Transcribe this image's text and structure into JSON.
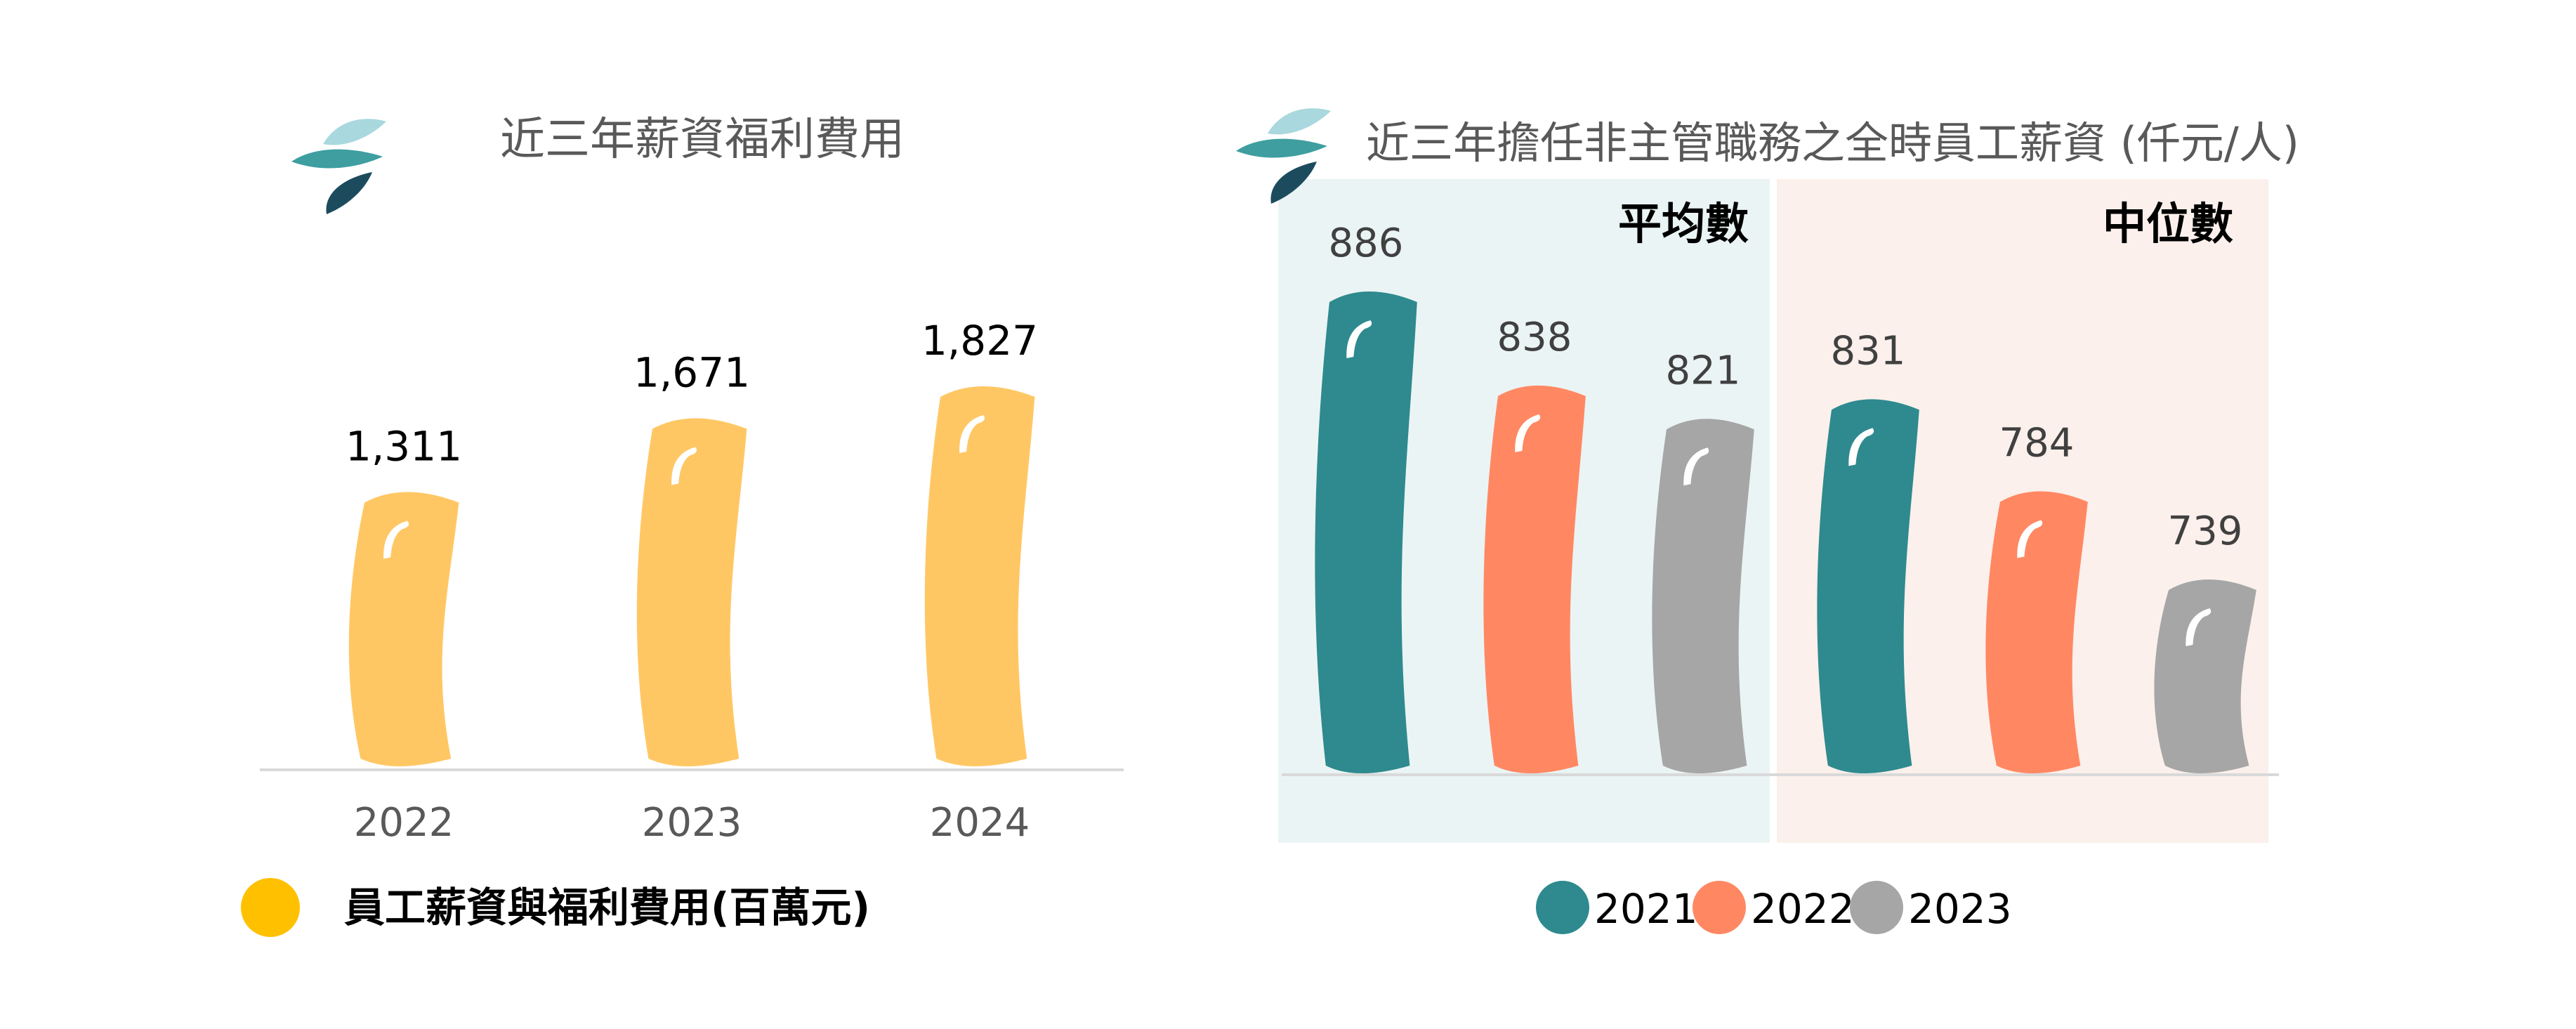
{
  "colors": {
    "yellow": "#FFC764",
    "legend_yellow": "#FFC000",
    "teal": "#2E8A8E",
    "orange": "#FF8863",
    "gray": "#A6A6A6",
    "panel_avg": "#EBF4F4",
    "panel_median": "#FBF0EB",
    "title_text": "#595959",
    "axis_line": "#D9D9D9",
    "logo_light": "#A9D8DE",
    "logo_mid": "#3E9EA0",
    "logo_dark": "#1D4B5E"
  },
  "chart_data": [
    {
      "type": "bar",
      "title": "近三年薪資福利費用",
      "categories": [
        "2022",
        "2023",
        "2024"
      ],
      "series": [
        {
          "name": "員工薪資與福利費用(百萬元)",
          "values": [
            1311,
            1671,
            1827
          ]
        }
      ],
      "value_labels": [
        "1,311",
        "1,671",
        "1,827"
      ],
      "ylim": [
        0,
        1900
      ],
      "grid": false,
      "legend": "bottom"
    },
    {
      "type": "bar",
      "title": "近三年擔任非主管職務之全時員工薪資 (仟元/人)",
      "groups": [
        "平均數",
        "中位數"
      ],
      "series": [
        {
          "name": "2021",
          "values": [
            886,
            831
          ]
        },
        {
          "name": "2022",
          "values": [
            838,
            784
          ]
        },
        {
          "name": "2023",
          "values": [
            821,
            739
          ]
        }
      ],
      "ylim": [
        500,
        910
      ],
      "grid": false,
      "legend": "bottom"
    }
  ]
}
